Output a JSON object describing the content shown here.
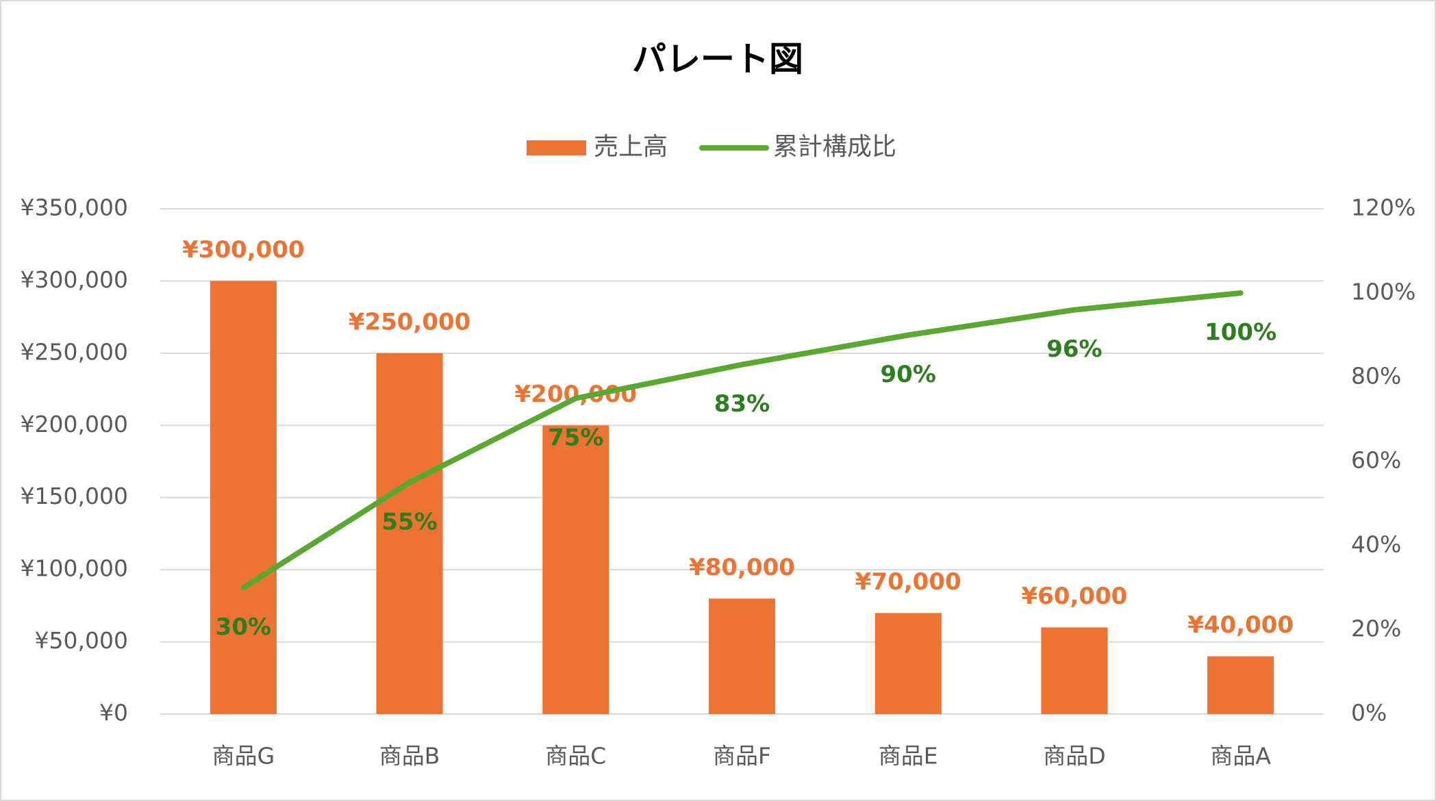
{
  "chart_data": {
    "type": "bar-line",
    "title": "パレート図",
    "categories": [
      "商品G",
      "商品B",
      "商品C",
      "商品F",
      "商品E",
      "商品D",
      "商品A"
    ],
    "series": [
      {
        "name": "売上高",
        "type": "bar",
        "color": "#ed7333",
        "values": [
          300000,
          250000,
          200000,
          80000,
          70000,
          60000,
          40000
        ],
        "value_labels": [
          "¥300,000",
          "¥250,000",
          "¥200,000",
          "¥80,000",
          "¥70,000",
          "¥60,000",
          "¥40,000"
        ]
      },
      {
        "name": "累計構成比",
        "type": "line",
        "axis": "y2",
        "color": "#5aa832",
        "values": [
          30,
          55,
          75,
          83,
          90,
          96,
          100
        ],
        "value_labels": [
          "30%",
          "55%",
          "75%",
          "83%",
          "90%",
          "96%",
          "100%"
        ]
      }
    ],
    "ylim": [
      0,
      350000
    ],
    "yticks": [
      {
        "value": 0,
        "label": "¥0"
      },
      {
        "value": 50000,
        "label": "¥50,000"
      },
      {
        "value": 100000,
        "label": "¥100,000"
      },
      {
        "value": 150000,
        "label": "¥150,000"
      },
      {
        "value": 200000,
        "label": "¥200,000"
      },
      {
        "value": 250000,
        "label": "¥250,000"
      },
      {
        "value": 300000,
        "label": "¥300,000"
      },
      {
        "value": 350000,
        "label": "¥350,000"
      }
    ],
    "y2lim": [
      0,
      120
    ],
    "y2ticks": [
      {
        "value": 0,
        "label": "0%"
      },
      {
        "value": 20,
        "label": "20%"
      },
      {
        "value": 40,
        "label": "40%"
      },
      {
        "value": 60,
        "label": "60%"
      },
      {
        "value": 80,
        "label": "80%"
      },
      {
        "value": 100,
        "label": "100%"
      },
      {
        "value": 120,
        "label": "120%"
      }
    ],
    "grid": true,
    "legend": "top"
  }
}
